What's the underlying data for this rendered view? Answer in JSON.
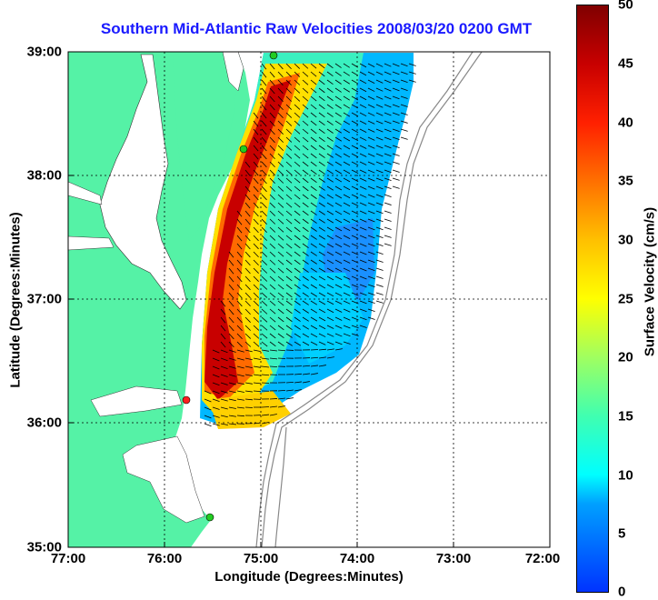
{
  "title": "Southern Mid-Atlantic Raw Velocities 2008/03/20 0200 GMT",
  "xlabel": "Longitude (Degrees:Minutes)",
  "ylabel": "Latitude (Degrees:Minutes)",
  "x_ticks": [
    "77:00",
    "76:00",
    "75:00",
    "74:00",
    "73:00",
    "72:00"
  ],
  "y_ticks": [
    "39:00",
    "38:00",
    "37:00",
    "36:00",
    "35:00"
  ],
  "colorbar": {
    "label": "Surface Velocity (cm/s)",
    "ticks": [
      "50",
      "45",
      "40",
      "35",
      "30",
      "25",
      "20",
      "15",
      "10",
      "5",
      "0"
    ],
    "range": [
      0,
      50
    ]
  },
  "colors": {
    "land": "#55f2a6",
    "title": "#1a1aff",
    "bathymetry": "#888888",
    "station_green": "#22cc22",
    "station_red": "#ff2020"
  },
  "map": {
    "lon_range": [
      -77,
      -72
    ],
    "lat_range": [
      35,
      39
    ]
  }
}
